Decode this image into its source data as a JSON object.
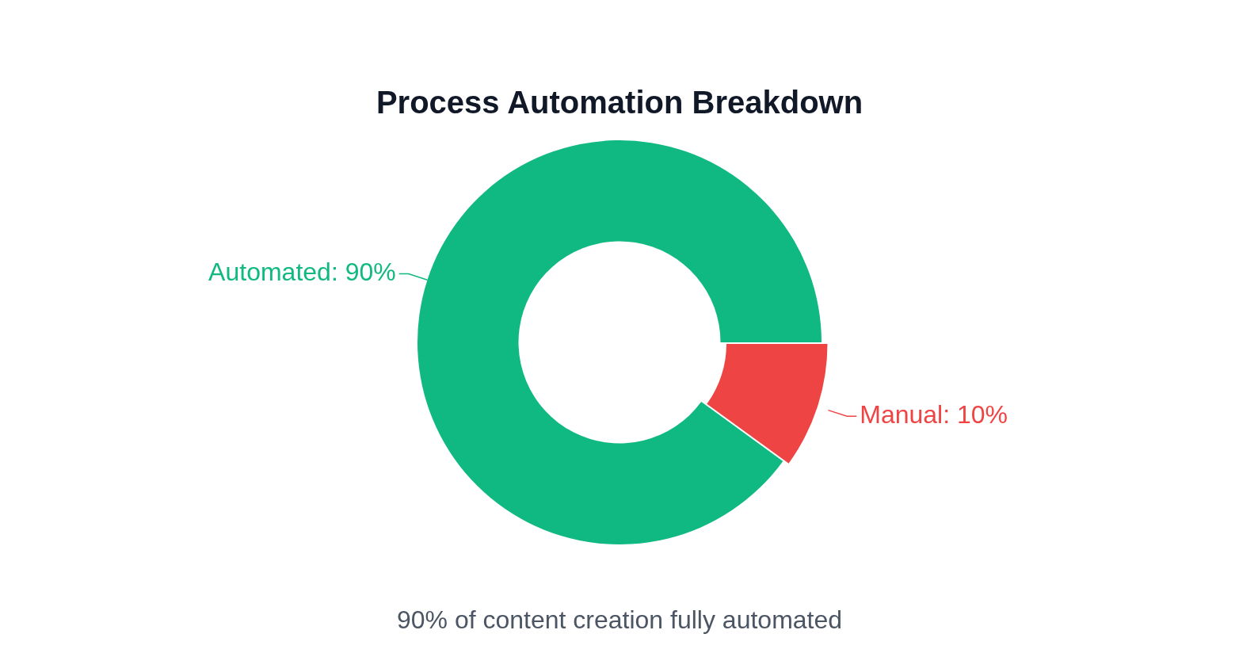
{
  "chart_data": {
    "type": "donut",
    "title": "Process Automation Breakdown",
    "categories": [
      "Automated",
      "Manual"
    ],
    "values": [
      90,
      10
    ],
    "value_labels": [
      "90%",
      "10%"
    ],
    "colors": [
      "#10b981",
      "#ef4444"
    ],
    "legend": false,
    "annotations": [
      "90% of content creation fully automated"
    ]
  }
}
